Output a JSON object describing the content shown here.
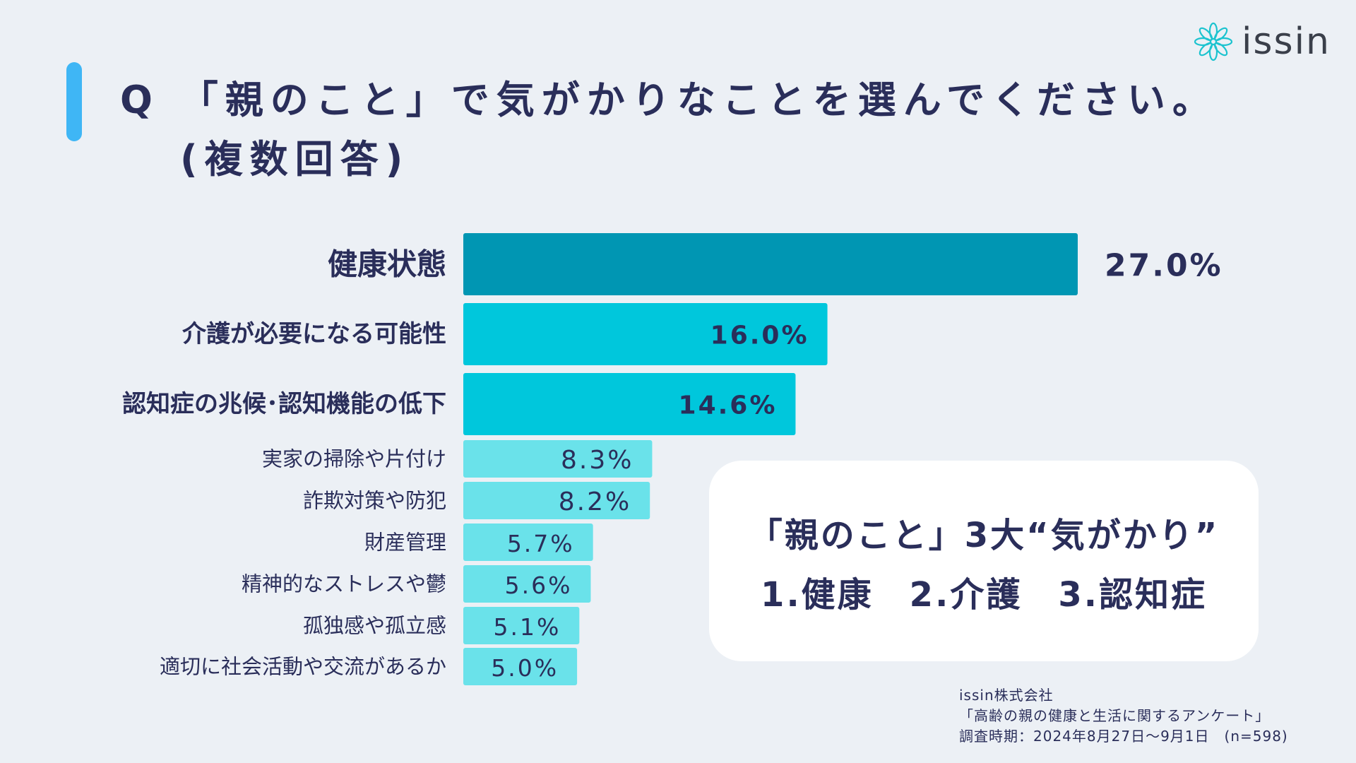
{
  "title": {
    "line1": "Q 「親のこと」で気がかりなことを選んでください。",
    "line2": "(複数回答)"
  },
  "logo": {
    "icon": "flower-logo-icon",
    "text": "issin"
  },
  "colors": {
    "background": "#ecf0f5",
    "accent": "#3fb6f5",
    "bar_top": "#0096b3",
    "bar_mid": "#00c7dc",
    "bar_low": "#6ae2ea",
    "text": "#2a2e5a"
  },
  "chart_data": {
    "type": "bar",
    "orientation": "horizontal",
    "title": "Q 「親のこと」で気がかりなことを選んでください。(複数回答)",
    "categories": [
      "健康状態",
      "介護が必要になる可能性",
      "認知症の兆候･認知機能の低下",
      "実家の掃除や片付け",
      "詐欺対策や防犯",
      "財産管理",
      "精神的なストレスや鬱",
      "孤独感や孤立感",
      "適切に社会活動や交流があるか"
    ],
    "values": [
      27.0,
      16.0,
      14.6,
      8.3,
      8.2,
      5.7,
      5.6,
      5.1,
      5.0
    ],
    "labels": [
      "27.0%",
      "16.0%",
      "14.6%",
      "8.3%",
      "8.2%",
      "5.7%",
      "5.6%",
      "5.1%",
      "5.0%"
    ],
    "unit": "%",
    "xlim": [
      0,
      27.0
    ],
    "xlabel": "",
    "ylabel": ""
  },
  "callout": {
    "line1": "「親のこと」3大“気がかり”",
    "line2": "1.健康　2.介護　3.認知症"
  },
  "source": {
    "company": "issin株式会社",
    "survey": "「高齢の親の健康と生活に関するアンケート」",
    "period": "調査時期：2024年8月27日〜9月1日　(n=598)"
  }
}
